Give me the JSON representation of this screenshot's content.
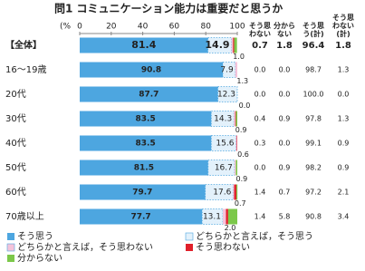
{
  "chart_data": {
    "type": "stacked-bar-h",
    "title": "問1 コミュニケーション能力は重要だと思うか",
    "axis_label": "(%",
    "categories": [
      "【全体】",
      "16～19歳",
      "20代",
      "30代",
      "40代",
      "50代",
      "60代",
      "70歳以上"
    ],
    "xlim": [
      0,
      100
    ],
    "xticks": [
      0,
      20,
      40,
      60,
      80,
      100
    ],
    "grid": false,
    "series": [
      {
        "name": "そう思う",
        "color": "#4da6e0",
        "values": [
          81.4,
          90.8,
          87.7,
          83.5,
          83.5,
          81.5,
          79.7,
          77.7
        ]
      },
      {
        "name": "どちらかと言えば，そう思う",
        "color": "#e3f1fb",
        "values": [
          14.9,
          7.9,
          12.3,
          14.3,
          15.6,
          16.7,
          17.6,
          13.1
        ]
      },
      {
        "name": "どちらかと言えば，そう思わない",
        "color": "#f4c3da",
        "values": [
          1,
          1.3,
          0,
          0.9,
          0.6,
          0.9,
          0.7,
          2
        ],
        "value_labels": [
          "1.0",
          "1.3",
          "0.0",
          "0.9",
          "0.6",
          "0.9",
          "0.7",
          "2.0"
        ]
      },
      {
        "name": "そう思わない",
        "color": "#e0202a",
        "values": [
          0.7,
          0,
          0,
          0.4,
          0.3,
          0,
          1.4,
          1.4
        ],
        "value_labels": [
          "0.7",
          "0.0",
          "0.0",
          "0.4",
          "0.3",
          "0.0",
          "1.4",
          "1.4"
        ]
      },
      {
        "name": "分からない",
        "color": "#7cc84a",
        "values": [
          1.8,
          0,
          0,
          0.9,
          0,
          0.9,
          0.7,
          5.8
        ],
        "value_labels": [
          "1.8",
          "0.0",
          "0.0",
          "0.9",
          "0.0",
          "0.9",
          "0.7",
          "5.8"
        ]
      }
    ],
    "agree_total": {
      "name": "そう思う(計)",
      "values": [
        96.4,
        98.7,
        100,
        97.8,
        99.1,
        98.2,
        97.2,
        90.8
      ],
      "value_labels": [
        "96.4",
        "98.7",
        "100.0",
        "97.8",
        "99.1",
        "98.2",
        "97.2",
        "90.8"
      ]
    },
    "disagree_total": {
      "name": "そう思わない(計)",
      "values": [
        1.8,
        1.3,
        0,
        1.3,
        0.9,
        0.9,
        2.1,
        3.4
      ],
      "value_labels": [
        "1.8",
        "1.3",
        "0.0",
        "1.3",
        "0.9",
        "0.9",
        "2.1",
        "3.4"
      ]
    }
  }
}
